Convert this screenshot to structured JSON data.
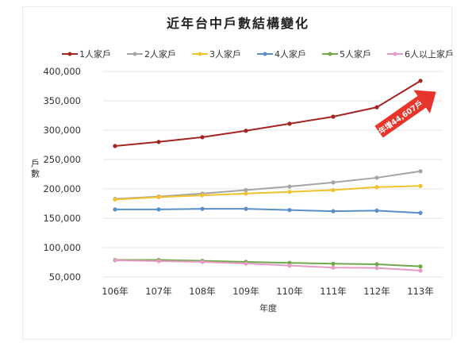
{
  "chart_data": {
    "type": "line",
    "title": "近年台中戶數結構變化",
    "xlabel": "年度",
    "ylabel": "戶數",
    "categories": [
      "106年",
      "107年",
      "108年",
      "109年",
      "110年",
      "111年",
      "112年",
      "113年"
    ],
    "ylim": [
      50000,
      400000
    ],
    "yticks": [
      "50,000",
      "100,000",
      "150,000",
      "200,000",
      "250,000",
      "300,000",
      "350,000",
      "400,000"
    ],
    "grid": true,
    "legend": "top",
    "series": [
      {
        "name": "1人家戶",
        "color": "#a52422",
        "values": [
          273000,
          280000,
          288000,
          299000,
          311000,
          323000,
          339000,
          384000
        ]
      },
      {
        "name": "2人家戶",
        "color": "#a5a5a5",
        "values": [
          183000,
          187000,
          192000,
          198000,
          204000,
          211000,
          219000,
          230000
        ]
      },
      {
        "name": "3人家戶",
        "color": "#f2c12e",
        "values": [
          182000,
          186000,
          189000,
          192000,
          195000,
          198000,
          203000,
          205000
        ]
      },
      {
        "name": "4人家戶",
        "color": "#5b8fc9",
        "values": [
          165000,
          165000,
          166000,
          166000,
          164000,
          162000,
          163000,
          159000
        ]
      },
      {
        "name": "5人家戶",
        "color": "#70a84b",
        "values": [
          79000,
          79000,
          77500,
          75700,
          74000,
          72600,
          71700,
          68000
        ]
      },
      {
        "name": "6人以上家戶",
        "color": "#e89ac7",
        "values": [
          78400,
          77000,
          75700,
          73000,
          69400,
          66000,
          65400,
          60900
        ]
      }
    ],
    "annotation": {
      "text": "年增44,607戶",
      "color": "#e8352b"
    }
  }
}
